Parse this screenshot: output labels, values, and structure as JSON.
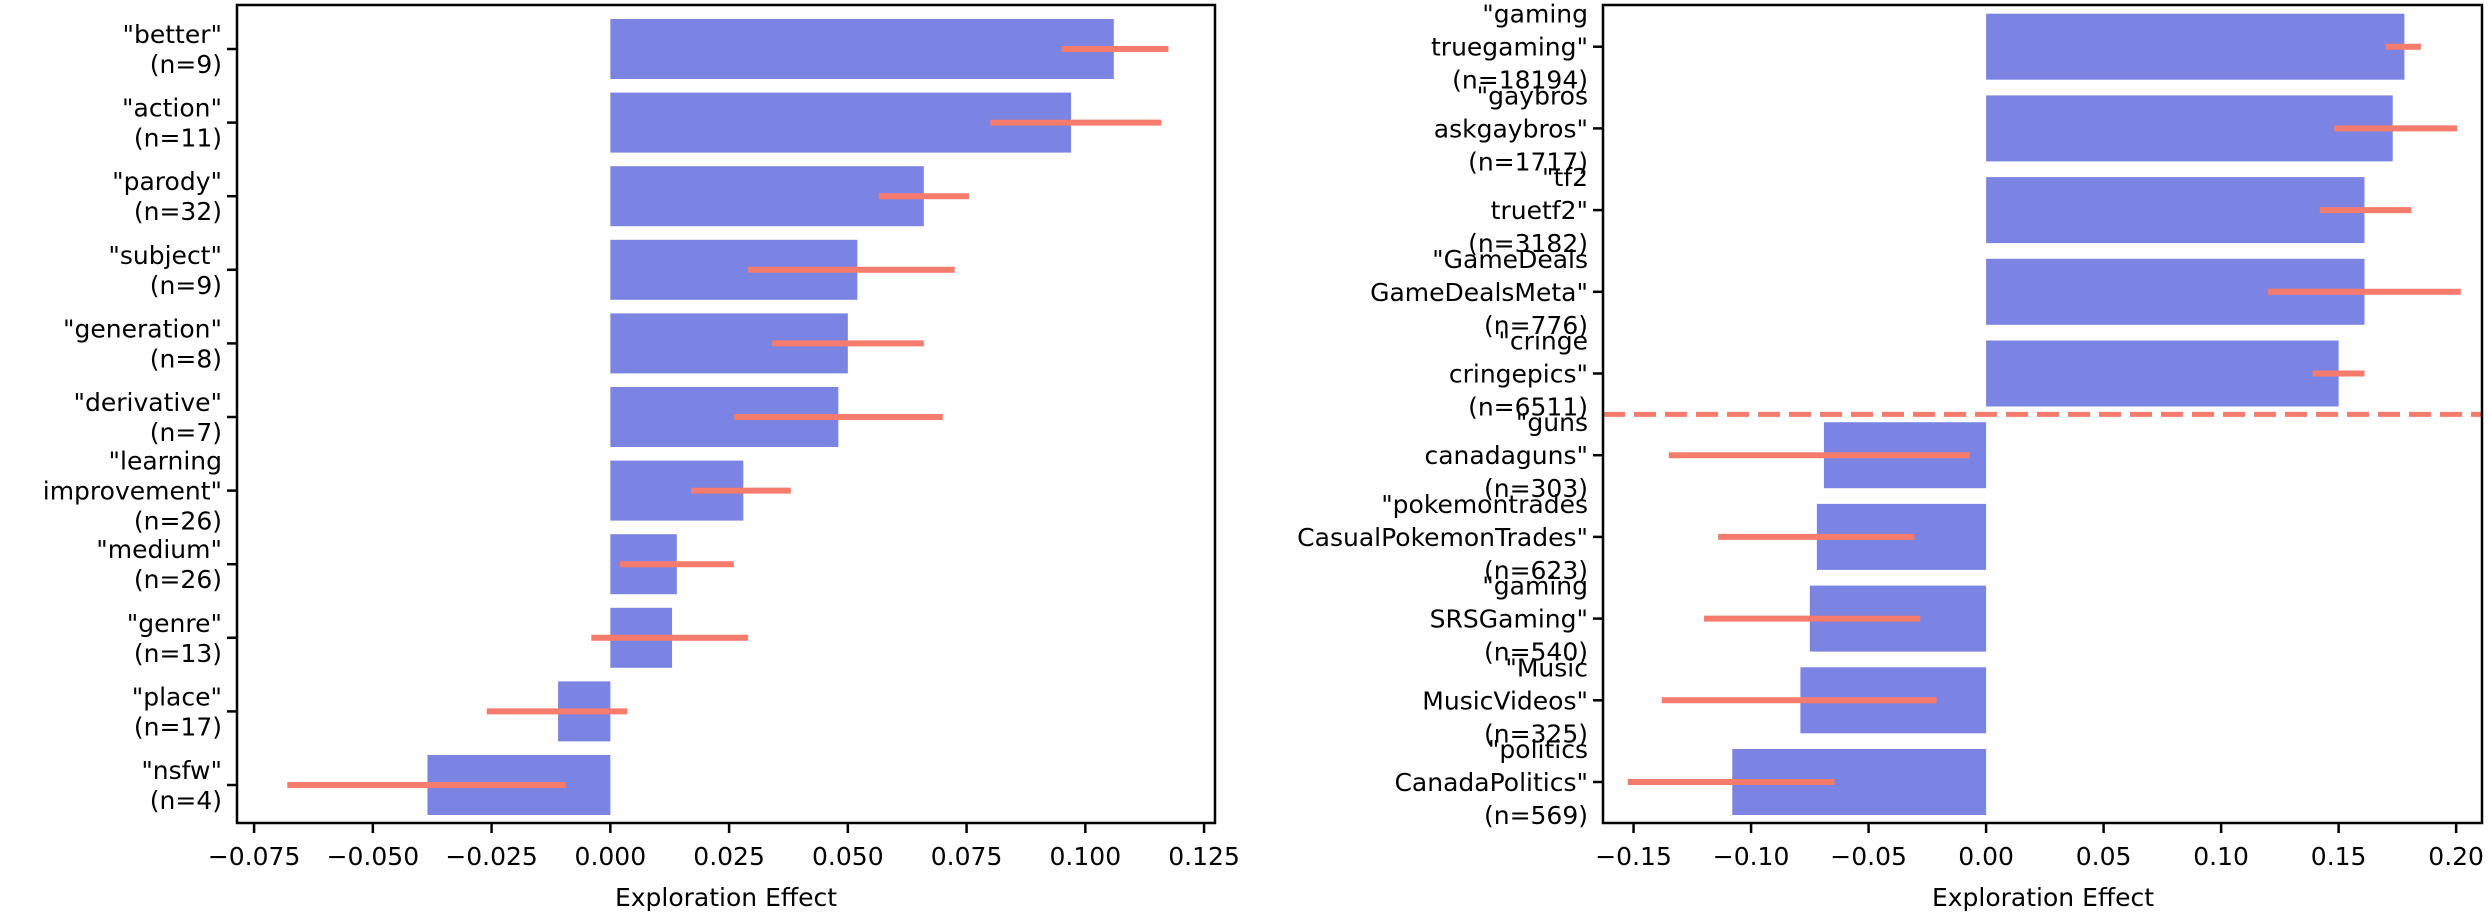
{
  "colors": {
    "bar": "#7b84e3",
    "error": "#f57b6c",
    "threshold_line": "#f57b6c"
  },
  "chart_data": [
    {
      "type": "bar",
      "orientation": "horizontal",
      "title": "",
      "xlabel": "Exploration Effect",
      "ylabel": "",
      "xlim": [
        -0.0786,
        0.1273
      ],
      "xticks": [
        -0.075,
        -0.05,
        -0.025,
        0.0,
        0.025,
        0.05,
        0.075,
        0.1,
        0.125
      ],
      "xtick_labels": [
        "−0.075",
        "−0.050",
        "−0.025",
        "0.000",
        "0.025",
        "0.050",
        "0.075",
        "0.100",
        "0.125"
      ],
      "grid": false,
      "categories": [
        [
          "\"better\"",
          "(n=9)"
        ],
        [
          "\"action\"",
          "(n=11)"
        ],
        [
          "\"parody\"",
          "(n=32)"
        ],
        [
          "\"subject\"",
          "(n=9)"
        ],
        [
          "\"generation\"",
          "(n=8)"
        ],
        [
          "\"derivative\"",
          "(n=7)"
        ],
        [
          "\"learning",
          "improvement\"",
          "(n=26)"
        ],
        [
          "\"medium\"",
          "(n=26)"
        ],
        [
          "\"genre\"",
          "(n=13)"
        ],
        [
          "\"place\"",
          "(n=17)"
        ],
        [
          "\"nsfw\"",
          "(n=4)"
        ]
      ],
      "values": [
        0.106,
        0.097,
        0.066,
        0.052,
        0.05,
        0.048,
        0.028,
        0.014,
        0.013,
        -0.011,
        -0.0385
      ],
      "error_low": [
        0.095,
        0.08,
        0.0565,
        0.029,
        0.034,
        0.026,
        0.017,
        0.002,
        -0.004,
        -0.026,
        -0.068
      ],
      "error_high": [
        0.1175,
        0.116,
        0.0755,
        0.0725,
        0.066,
        0.07,
        0.038,
        0.026,
        0.029,
        0.0036,
        -0.0094
      ]
    },
    {
      "type": "bar",
      "orientation": "horizontal",
      "title": "",
      "xlabel": "Exploration Effect",
      "ylabel": "",
      "xlim": [
        -0.163,
        0.211
      ],
      "xticks": [
        -0.15,
        -0.1,
        -0.05,
        0.0,
        0.05,
        0.1,
        0.15,
        0.2
      ],
      "xtick_labels": [
        "−0.15",
        "−0.10",
        "−0.05",
        "0.00",
        "0.05",
        "0.10",
        "0.15",
        "0.20"
      ],
      "grid": false,
      "threshold_line_after_index": 4,
      "categories": [
        [
          "\"gaming",
          "truegaming\"",
          "(n=18194)"
        ],
        [
          "\"gaybros",
          "askgaybros\"",
          "(n=1717)"
        ],
        [
          "\"tf2",
          "truetf2\"",
          "(n=3182)"
        ],
        [
          "\"GameDeals",
          "GameDealsMeta\"",
          "(n=776)"
        ],
        [
          "\"cringe",
          "cringepics\"",
          "(n=6511)"
        ],
        [
          "\"guns",
          "canadaguns\"",
          "(n=303)"
        ],
        [
          "\"pokemontrades",
          "CasualPokemonTrades\"",
          "(n=623)"
        ],
        [
          "\"gaming",
          "SRSGaming\"",
          "(n=540)"
        ],
        [
          "\"Music",
          "MusicVideos\"",
          "(n=325)"
        ],
        [
          "\"politics",
          "CanadaPolitics\"",
          "(n=569)"
        ]
      ],
      "values": [
        0.178,
        0.173,
        0.161,
        0.161,
        0.15,
        -0.069,
        -0.072,
        -0.075,
        -0.079,
        -0.108
      ],
      "error_low": [
        0.17,
        0.148,
        0.142,
        0.12,
        0.139,
        -0.135,
        -0.114,
        -0.12,
        -0.138,
        -0.1525
      ],
      "error_high": [
        0.185,
        0.2005,
        0.181,
        0.202,
        0.161,
        -0.007,
        -0.0305,
        -0.028,
        -0.021,
        -0.0645
      ]
    }
  ]
}
